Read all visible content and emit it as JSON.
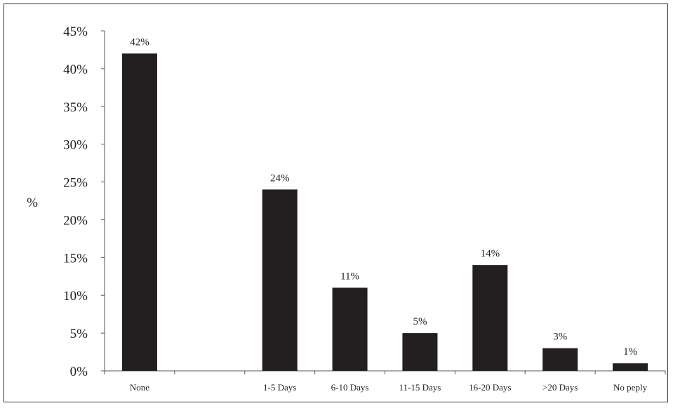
{
  "chart_data": {
    "type": "bar",
    "title": "",
    "xlabel": "",
    "ylabel": "%",
    "ylim": [
      0,
      45
    ],
    "yticks": [
      "0%",
      "5%",
      "10%",
      "15%",
      "20%",
      "25%",
      "30%",
      "35%",
      "40%",
      "45%"
    ],
    "categories": [
      "None",
      "",
      "1-5 Days",
      "6-10 Days",
      "11-15 Days",
      "16-20 Days",
      ">20 Days",
      "No peply"
    ],
    "values": [
      42,
      null,
      24,
      11,
      5,
      14,
      3,
      1
    ],
    "data_labels": [
      "42%",
      "",
      "24%",
      "11%",
      "5%",
      "14%",
      "3%",
      "1%"
    ],
    "bar_color": "#231f20",
    "grid": false,
    "legend": "none"
  }
}
